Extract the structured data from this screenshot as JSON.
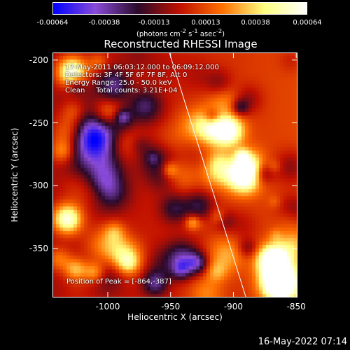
{
  "colorbar": {
    "tick_labels": [
      "-0.00064",
      "-0.00038",
      "-0.00013",
      "0.00013",
      "0.00038",
      "0.00064"
    ],
    "tick_values": [
      -0.00064,
      -0.00038,
      -0.00013,
      0.00013,
      0.00038,
      0.00064
    ],
    "units_pre": "(photons cm",
    "units_sup1": "-2",
    "units_mid1": " s",
    "units_sup2": "-1",
    "units_mid2": " asec",
    "units_sup3": "-2",
    "units_post": ")"
  },
  "info": {
    "line1": "17-May-2011 06:03:12.000 to 06:09:12.000",
    "line2": "Detectors: 3F 4F 5F 6F 7F 8F, Att 0",
    "line3": "Energy Range: 25.0 - 50.0 keV",
    "line4": "Clean     Total counts: 3.21E+04"
  },
  "peak_text": "Position of Peak = [-864,-387]",
  "timestamp": "16-May-2022 07:14",
  "chart_data": {
    "type": "heatmap",
    "title": "Reconstructed RHESSI Image",
    "xlabel": "Heliocentric X (arcsec)",
    "ylabel": "Heliocentric Y (arcsec)",
    "xlim": [
      -1044,
      -849
    ],
    "ylim": [
      -389,
      -194
    ],
    "x_ticks": [
      -1000,
      -950,
      -900,
      -850
    ],
    "x_tick_labels": [
      "-1000",
      "-950",
      "-900",
      "-850"
    ],
    "y_ticks": [
      -200,
      -250,
      -300,
      -350
    ],
    "y_tick_labels": [
      "-200",
      "-250",
      "-300",
      "-350"
    ],
    "value_range": [
      -0.00064,
      0.00064
    ],
    "peak": [
      -864,
      -387
    ],
    "limb_line": [
      [
        -951,
        -194
      ],
      [
        -890,
        -389
      ]
    ],
    "colors": {
      "colormap": [
        "#0000ff",
        "#8a4bd8",
        "#2a0a2a",
        "#c01000",
        "#ff7000",
        "#ffff80",
        "#ffffff"
      ],
      "limb": "#ffffff",
      "axes": "#ffffff"
    }
  }
}
